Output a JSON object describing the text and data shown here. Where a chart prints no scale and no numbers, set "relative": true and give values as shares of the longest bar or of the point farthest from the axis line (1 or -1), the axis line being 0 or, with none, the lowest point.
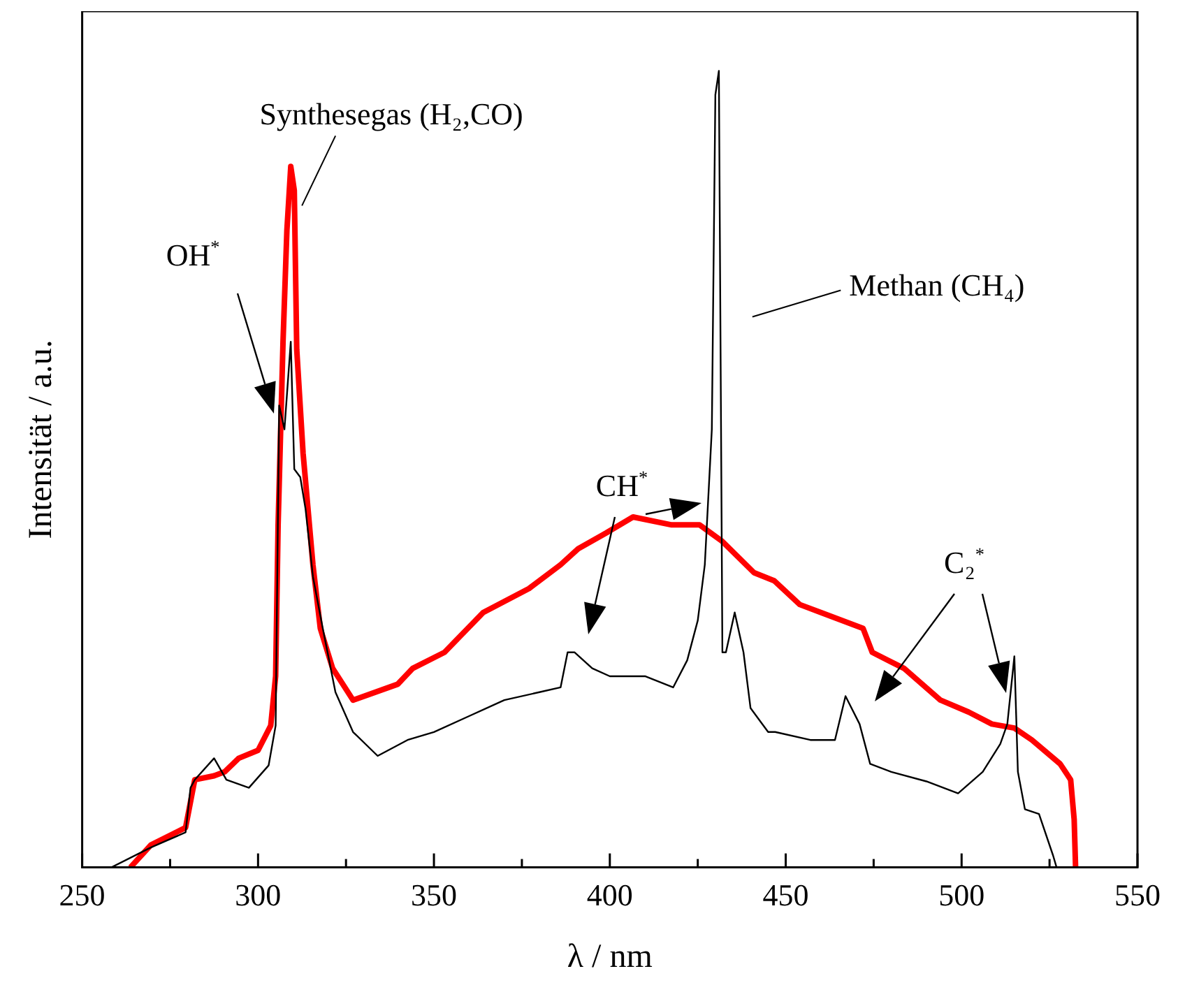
{
  "chart_data": {
    "type": "line",
    "relative": true,
    "xlabel": "λ / nm",
    "ylabel": "Intensität / a.u.",
    "xlim": [
      250,
      550
    ],
    "xticks": [
      250,
      {
        "value": 275,
        "label": null
      },
      300,
      {
        "value": 325,
        "label": null
      },
      350,
      {
        "value": 375,
        "label": null
      },
      400,
      {
        "value": 425,
        "label": null
      },
      450,
      {
        "value": 475,
        "label": null
      },
      500,
      {
        "value": 525,
        "label": null
      },
      550
    ],
    "legend": "top right",
    "grid": false,
    "marker": "none",
    "line_style": "solid",
    "series": [
      {
        "name": "Synthesegas (H₂,CO)",
        "color": "#ff0000",
        "x": [
          263.7,
          269.5,
          279.4,
          282,
          287.5,
          290.5,
          294.5,
          300,
          303.6,
          305,
          305.7,
          307.1,
          308.2,
          309.3,
          310.3,
          311,
          312.8,
          315.6,
          317.7,
          321.2,
          327,
          339.7,
          344,
          353,
          364,
          377,
          386,
          391,
          399,
          406.6,
          417.6,
          425.5,
          431.8,
          441,
          446.7,
          454,
          460,
          472,
          474.6,
          483.6,
          494,
          502,
          508.6,
          515,
          520,
          528,
          531,
          532,
          532.4
        ],
        "values": [
          0,
          0.028,
          0.05,
          0.11,
          0.115,
          0.12,
          0.137,
          0.147,
          0.178,
          0.24,
          0.43,
          0.66,
          0.8,
          0.88,
          0.85,
          0.65,
          0.52,
          0.38,
          0.3,
          0.25,
          0.21,
          0.23,
          0.25,
          0.27,
          0.32,
          0.35,
          0.38,
          0.4,
          0.42,
          0.44,
          0.43,
          0.43,
          0.41,
          0.37,
          0.36,
          0.33,
          0.32,
          0.3,
          0.27,
          0.25,
          0.21,
          0.195,
          0.18,
          0.175,
          0.16,
          0.13,
          0.11,
          0.06,
          0
        ]
      },
      {
        "name": "Methan (CH₄)",
        "color": "#000000",
        "x": [
          258.3,
          269.5,
          279.4,
          280.8,
          282,
          287.5,
          291,
          297.4,
          303,
          305,
          306,
          307.5,
          309.3,
          310.3,
          312,
          313.5,
          315.6,
          318.4,
          322,
          327,
          334,
          342.5,
          350,
          360,
          370,
          380,
          386,
          388,
          390,
          395,
          400,
          410,
          418,
          422,
          425,
          427,
          429,
          430,
          431,
          432,
          433,
          435.5,
          438,
          440,
          445,
          447,
          457,
          464,
          467,
          471,
          474,
          480,
          490,
          499,
          506,
          511,
          513,
          515,
          516,
          518,
          522,
          526,
          527
        ],
        "values": [
          0,
          0.025,
          0.044,
          0.1,
          0.11,
          0.137,
          0.11,
          0.1,
          0.128,
          0.178,
          0.58,
          0.55,
          0.66,
          0.5,
          0.49,
          0.45,
          0.365,
          0.3,
          0.22,
          0.17,
          0.14,
          0.16,
          0.17,
          0.19,
          0.21,
          0.22,
          0.226,
          0.27,
          0.27,
          0.25,
          0.24,
          0.24,
          0.226,
          0.26,
          0.31,
          0.38,
          0.55,
          0.97,
          1,
          0.27,
          0.27,
          0.32,
          0.27,
          0.2,
          0.17,
          0.17,
          0.16,
          0.16,
          0.215,
          0.18,
          0.13,
          0.12,
          0.108,
          0.093,
          0.12,
          0.155,
          0.18,
          0.265,
          0.12,
          0.073,
          0.067,
          0.015,
          0
        ]
      }
    ],
    "annotations": [
      "OH$^{*}$",
      "CH$^{*}$",
      "C₂$^{*}$"
    ]
  }
}
